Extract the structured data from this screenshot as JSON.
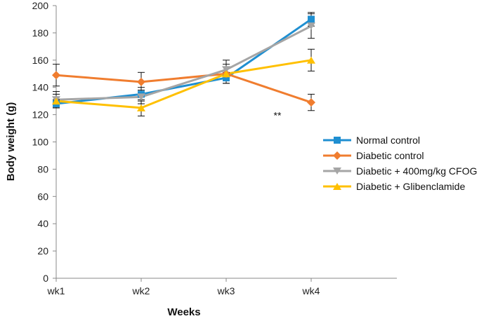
{
  "chart_data": {
    "type": "line",
    "title": "",
    "xlabel": "Weeks",
    "ylabel": "Body weight (g)",
    "categories": [
      "wk1",
      "wk2",
      "wk3",
      "wk4"
    ],
    "ylim": [
      0,
      200
    ],
    "yticks": [
      0,
      20,
      40,
      60,
      80,
      100,
      120,
      140,
      160,
      180,
      200
    ],
    "grid": false,
    "legend_position": "right",
    "annotations": [
      {
        "text": "**",
        "x": "wk4",
        "y": 117
      }
    ],
    "series": [
      {
        "name": "Normal control",
        "color": "#1f8fd1",
        "marker": "square",
        "values": [
          128,
          135,
          147,
          190
        ],
        "errors": [
          3,
          5,
          4,
          5
        ]
      },
      {
        "name": "Diabetic control",
        "color": "#f07d2f",
        "marker": "diamond",
        "values": [
          149,
          144,
          150,
          129
        ],
        "errors": [
          8,
          7,
          7,
          6
        ]
      },
      {
        "name": "Diabetic + 400mg/kg CFOG",
        "color": "#a5a5a5",
        "marker": "triangle-down",
        "values": [
          131,
          133,
          153,
          185
        ],
        "errors": [
          6,
          5,
          7,
          9
        ]
      },
      {
        "name": "Diabetic + Glibenclamide",
        "color": "#ffc000",
        "marker": "triangle-up",
        "values": [
          130,
          125,
          150,
          160
        ],
        "errors": [
          5,
          6,
          5,
          8
        ]
      }
    ]
  }
}
